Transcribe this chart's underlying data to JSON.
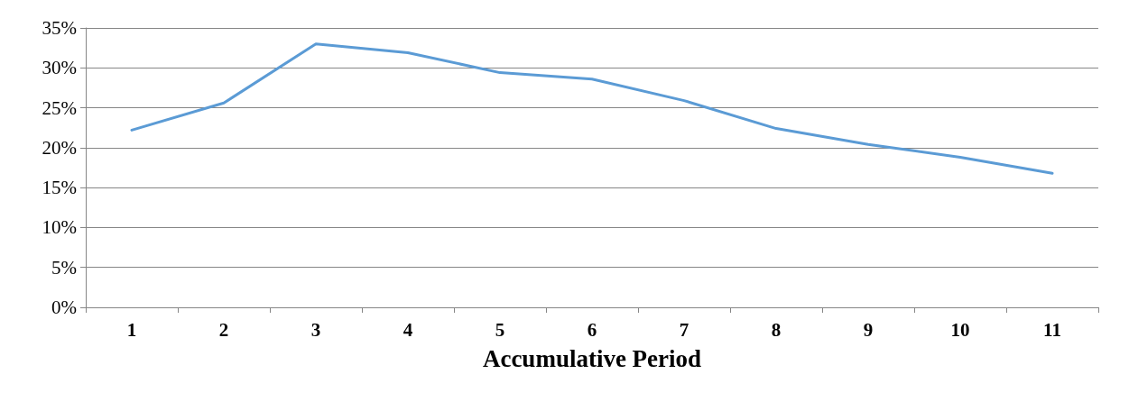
{
  "chart_data": {
    "type": "line",
    "xlabel": "Accumulative Period",
    "categories": [
      "1",
      "2",
      "3",
      "4",
      "5",
      "6",
      "7",
      "8",
      "9",
      "10",
      "11"
    ],
    "series": [
      {
        "color": "#5b9bd5",
        "values": [
          22.2,
          25.6,
          33.0,
          31.9,
          29.4,
          28.6,
          25.9,
          22.4,
          20.4,
          18.8,
          16.8
        ]
      }
    ],
    "ylim": [
      0,
      35
    ],
    "yticks": [
      {
        "value": 0,
        "label": "0%"
      },
      {
        "value": 5,
        "label": "5%"
      },
      {
        "value": 10,
        "label": "10%"
      },
      {
        "value": 15,
        "label": "15%"
      },
      {
        "value": 20,
        "label": "20%"
      },
      {
        "value": 25,
        "label": "25%"
      },
      {
        "value": 30,
        "label": "30%"
      },
      {
        "value": 35,
        "label": "35%"
      }
    ],
    "grid": "y",
    "marker": "none",
    "line_style": "solid"
  }
}
